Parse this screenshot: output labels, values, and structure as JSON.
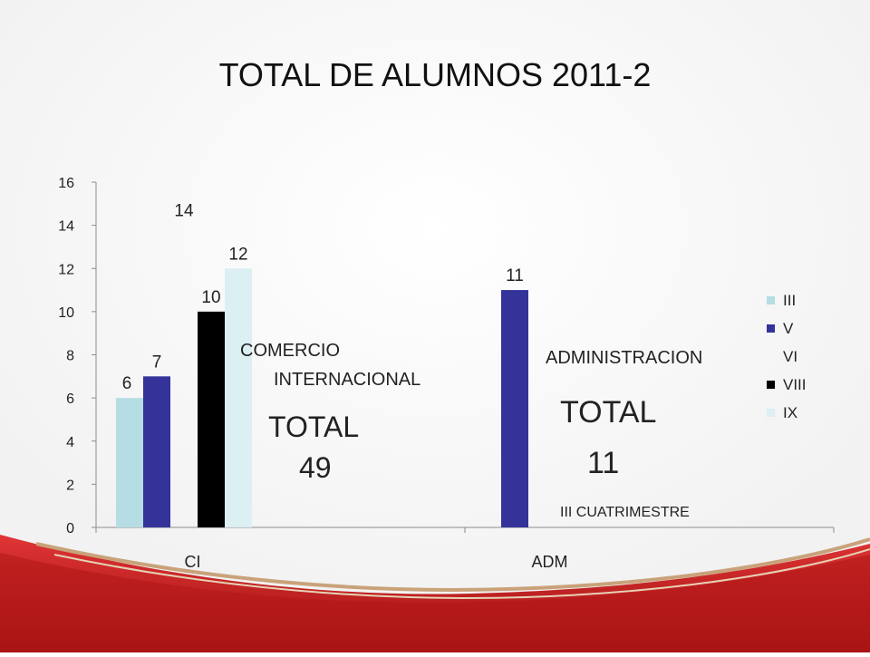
{
  "slide": {
    "title": "TOTAL DE ALUMNOS 2011-2",
    "annotations": {
      "comercio_line1": "COMERCIO",
      "comercio_line2": "INTERNACIONAL",
      "total_ci_label": "TOTAL",
      "total_ci_value": "49",
      "administracion": "ADMINISTRACION",
      "total_adm_label": "TOTAL",
      "total_adm_value": "11",
      "footnote": "III CUATRIMESTRE"
    }
  },
  "chart_data": {
    "type": "bar",
    "categories": [
      "CI",
      "ADM"
    ],
    "series": [
      {
        "name": "III",
        "color": "#b6dde3",
        "values": [
          6,
          null
        ]
      },
      {
        "name": "V",
        "color": "#33339a",
        "values": [
          7,
          11
        ]
      },
      {
        "name": "VI",
        "color": "#ffffff",
        "values": [
          14,
          null
        ]
      },
      {
        "name": "VIII",
        "color": "#000000",
        "values": [
          10,
          null
        ]
      },
      {
        "name": "IX",
        "color": "#dceff3",
        "values": [
          12,
          null
        ]
      }
    ],
    "ylim": [
      0,
      16
    ],
    "yticks": [
      0,
      2,
      4,
      6,
      8,
      10,
      12,
      14,
      16
    ],
    "grid": false,
    "legend": "right",
    "data_labels": true
  }
}
